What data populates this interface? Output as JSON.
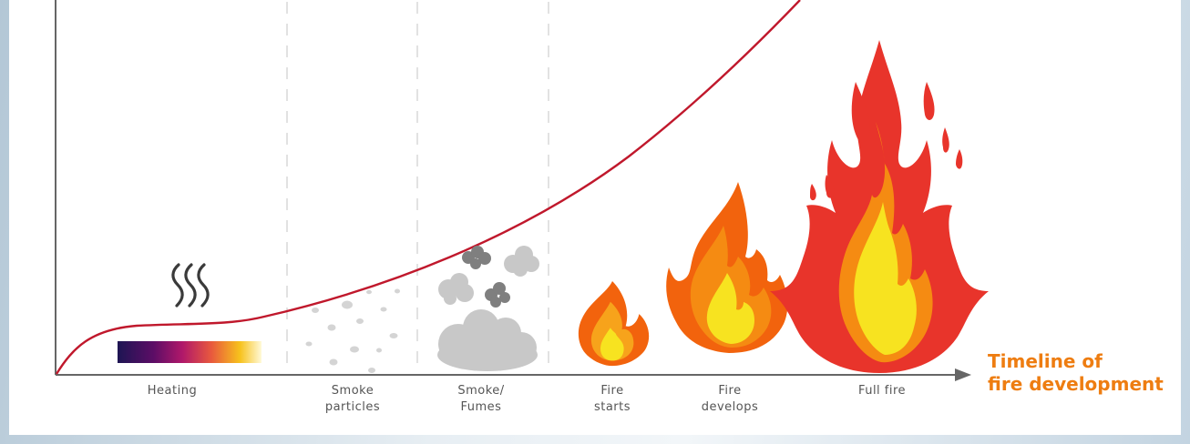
{
  "stages": [
    {
      "line1": "Heating",
      "line2": ""
    },
    {
      "line1": "Smoke",
      "line2": "particles"
    },
    {
      "line1": "Smoke/",
      "line2": "Fumes"
    },
    {
      "line1": "Fire",
      "line2": "starts"
    },
    {
      "line1": "Fire",
      "line2": "develops"
    },
    {
      "line1": "Full fire",
      "line2": ""
    }
  ],
  "timeline": {
    "line1": "Timeline of",
    "line2": "fire development"
  },
  "colors": {
    "curve": "#c0182c",
    "axis": "#666666",
    "accent": "#ee7d11",
    "smoke": "#c8c8c8",
    "smoke_dark": "#808080"
  },
  "icons": {
    "heat": "heat-waves-icon",
    "gradient": "heat-gradient-bar",
    "particles": "smoke-particles-icon",
    "fumes": "smoke-fumes-icon",
    "flame_small": "flame-small-icon",
    "flame_medium": "flame-medium-icon",
    "flame_large": "flame-large-icon"
  }
}
